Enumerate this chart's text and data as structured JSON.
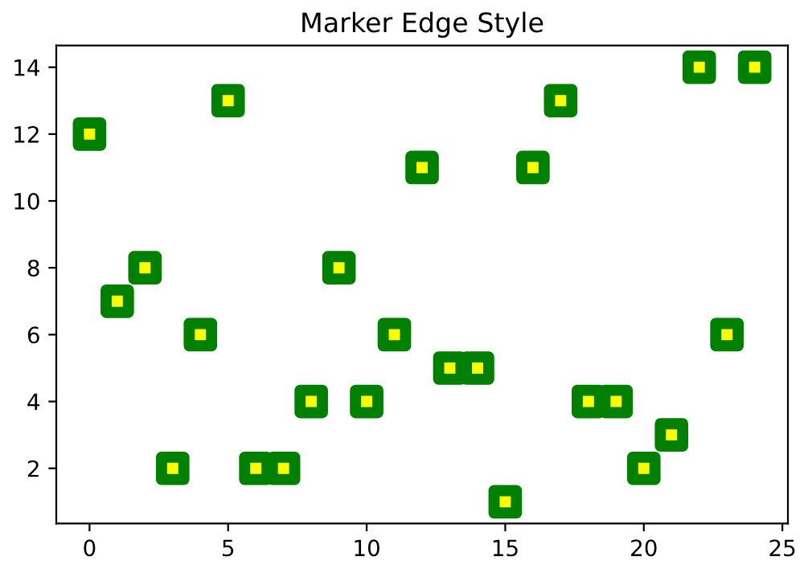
{
  "chart_data": {
    "type": "scatter",
    "title": "Marker Edge Style",
    "x": [
      0,
      1,
      2,
      3,
      4,
      5,
      6,
      7,
      8,
      9,
      10,
      11,
      12,
      13,
      14,
      15,
      16,
      17,
      18,
      19,
      20,
      21,
      22,
      23,
      24
    ],
    "series": [
      {
        "color": "#008000",
        "values": [
          12,
          7,
          8,
          2,
          6,
          13,
          2,
          2,
          4,
          8,
          4,
          6,
          11,
          5,
          5,
          1,
          11,
          13,
          4,
          4,
          2,
          3,
          14,
          6,
          14
        ]
      }
    ],
    "marker": "square",
    "xlim": [
      -1.2,
      25.2
    ],
    "ylim": [
      0.35,
      14.65
    ],
    "xticks": [
      0,
      5,
      10,
      15,
      20,
      25
    ],
    "yticks": [
      2,
      4,
      6,
      8,
      10,
      12,
      14
    ]
  }
}
